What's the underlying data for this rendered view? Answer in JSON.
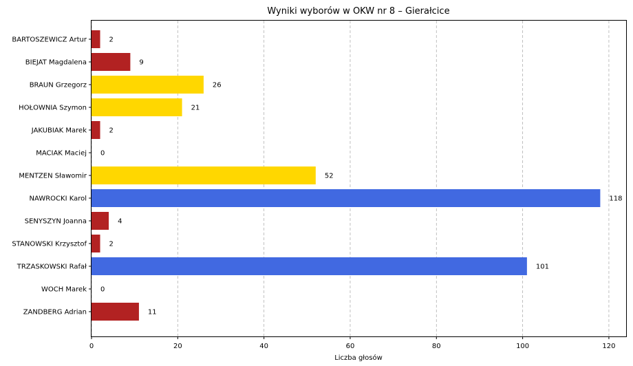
{
  "chart_data": {
    "type": "bar",
    "orientation": "horizontal",
    "title": "Wyniki wyborów w OKW nr 8 – Gierałcice",
    "xlabel": "Liczba głosów",
    "ylabel": "",
    "xlim": [
      0,
      124
    ],
    "xticks": [
      0,
      20,
      40,
      60,
      80,
      100,
      120
    ],
    "grid": "x-dashed",
    "categories": [
      "BARTOSZEWICZ Artur",
      "BIEJAT Magdalena",
      "BRAUN Grzegorz",
      "HOŁOWNIA Szymon",
      "JAKUBIAK Marek",
      "MACIAK Maciej",
      "MENTZEN Sławomir",
      "NAWROCKI Karol",
      "SENYSZYN Joanna",
      "STANOWSKI Krzysztof",
      "TRZASKOWSKI Rafał",
      "WOCH Marek",
      "ZANDBERG Adrian"
    ],
    "values": [
      2,
      9,
      26,
      21,
      2,
      0,
      52,
      118,
      4,
      2,
      101,
      0,
      11
    ],
    "colors": [
      "#b22222",
      "#b22222",
      "#ffd700",
      "#ffd700",
      "#b22222",
      "#b22222",
      "#ffd700",
      "#4169e1",
      "#b22222",
      "#b22222",
      "#4169e1",
      "#b22222",
      "#b22222"
    ]
  }
}
